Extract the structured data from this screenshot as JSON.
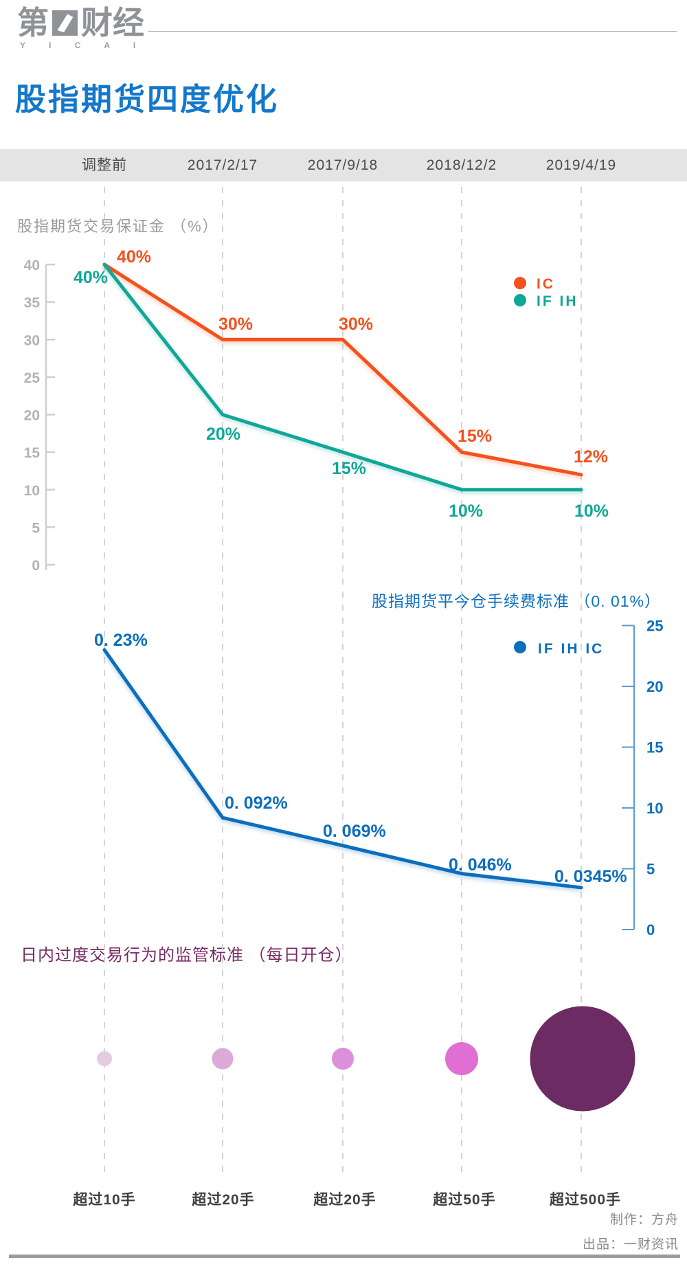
{
  "logo": {
    "brand_left": "第",
    "brand_right": "财经",
    "brand_en": "Y I C A I"
  },
  "page_title": "股指期货四度优化",
  "columns": [
    "调整前",
    "2017/2/17",
    "2017/9/18",
    "2018/12/2",
    "2019/4/19"
  ],
  "chart_data": [
    {
      "type": "line",
      "title": "股指期货交易保证金 （%）",
      "categories": [
        "调整前",
        "2017/2/17",
        "2017/9/18",
        "2018/12/2",
        "2019/4/19"
      ],
      "series": [
        {
          "name": "IC",
          "color": "#f4521d",
          "values": [
            40,
            30,
            30,
            15,
            12
          ],
          "labels": [
            "40%",
            "30%",
            "30%",
            "15%",
            "12%"
          ]
        },
        {
          "name": "IF IH",
          "color": "#10a797",
          "values": [
            40,
            20,
            15,
            10,
            10
          ],
          "labels": [
            "40%",
            "20%",
            "15%",
            "10%",
            "10%"
          ]
        }
      ],
      "ylim": [
        0,
        40
      ],
      "y_ticks": [
        "40",
        "35",
        "30",
        "25",
        "20",
        "15",
        "10",
        "5",
        "0"
      ],
      "grid": "dashed-vertical",
      "legend_position": "top-right"
    },
    {
      "type": "line",
      "title": "股指期货平今仓手续费标准 （0. 01%）",
      "categories": [
        "调整前",
        "2017/2/17",
        "2017/9/18",
        "2018/12/2",
        "2019/4/19"
      ],
      "series": [
        {
          "name": "IF IH IC",
          "color": "#0c6ebd",
          "values": [
            23,
            9.2,
            6.9,
            4.6,
            3.45
          ],
          "labels": [
            "0. 23%",
            "0. 092%",
            "0. 069%",
            "0. 046%",
            "0. 0345%"
          ]
        }
      ],
      "ylim": [
        0,
        25
      ],
      "y_ticks": [
        "25",
        "20",
        "15",
        "10",
        "5",
        "0"
      ],
      "axis_side": "right",
      "legend_position": "top-right"
    },
    {
      "type": "bubble",
      "title": "日内过度交易行为的监管标准 （每日开仓）",
      "categories": [
        "超过10手",
        "超过20手",
        "超过20手",
        "超过50手",
        "超过500手"
      ],
      "values": [
        10,
        20,
        20,
        50,
        500
      ],
      "bubble_colors": [
        "#e4cbe2",
        "#dbaad8",
        "#dd90da",
        "#e06ed3",
        "#6c2b62"
      ],
      "bubble_radii": [
        11,
        15.5,
        16,
        24,
        76.5
      ]
    }
  ],
  "footer": {
    "credit1": "制作：方舟",
    "credit2": "出品：一财资讯"
  }
}
